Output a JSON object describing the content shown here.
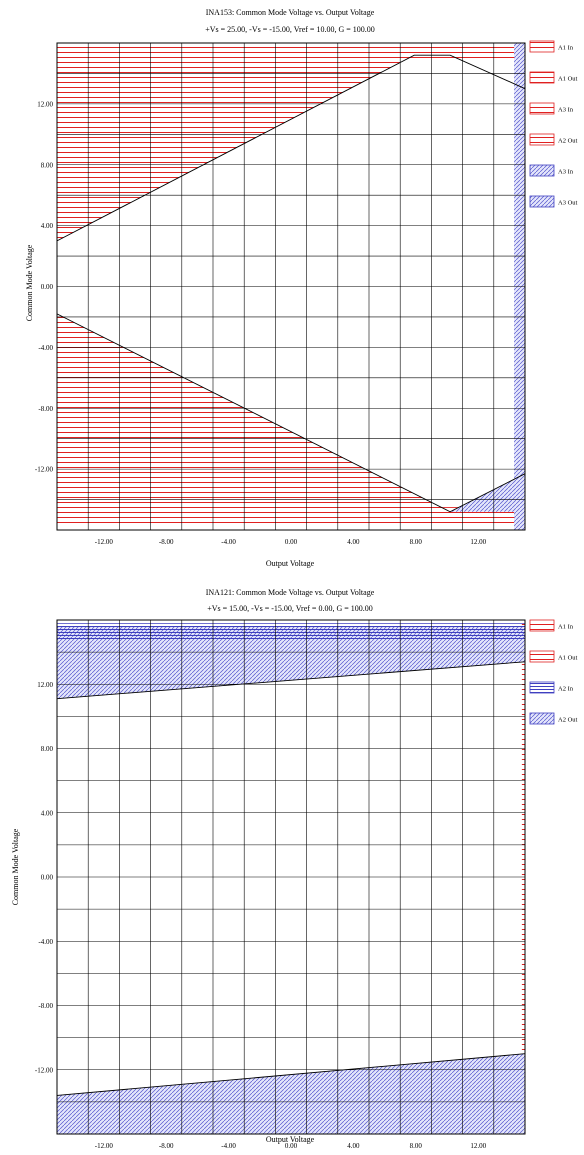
{
  "chart_data": [
    {
      "type": "area",
      "title": "INA153: Common Mode Voltage vs. Output Voltage",
      "subtitle": "+Vs = 25.00, -Vs = -15.00, Vref = 10.00, G = 100.00",
      "xlabel": "Output Voltage",
      "ylabel": "Common Mode Voltage",
      "xlim": [
        -15,
        15
      ],
      "ylim": [
        -16,
        16
      ],
      "x_ticks": [
        -12,
        -8,
        -4,
        0,
        4,
        8,
        12
      ],
      "x_tick_labels": [
        "-12.00",
        "-8.00",
        "-4.00",
        "0.00",
        "4.00",
        "8.00",
        "12.00"
      ],
      "y_ticks": [
        12,
        8,
        4,
        0,
        -4,
        -8,
        -12
      ],
      "y_tick_labels": [
        "12.00",
        "8.00",
        "4.00",
        "0.00",
        "-4.00",
        "-8.00",
        "-12.00"
      ],
      "grid": true,
      "legend_position": "right",
      "legend": [
        "A1 In",
        "A1 Out",
        "A3 In",
        "A2 Out",
        "A3 In",
        "A3 Out"
      ],
      "series": [
        {
          "name": "A1 In",
          "color": "#e02020",
          "fill": "hatch-h",
          "polygon": [
            [
              -15,
              3.0
            ],
            [
              7.9,
              15.2
            ],
            [
              -15,
              15.2
            ]
          ]
        },
        {
          "name": "A1 Out",
          "color": "#e02020",
          "fill": "hatch-h",
          "polygon": [
            [
              -15,
              14.8
            ],
            [
              15,
              14.8
            ],
            [
              15,
              15.8
            ],
            [
              -15,
              15.8
            ]
          ]
        },
        {
          "name": "A3 In",
          "color": "#e02020",
          "fill": "hatch-h",
          "polygon": [
            [
              -15,
              -1.8
            ],
            [
              10.2,
              -14.8
            ],
            [
              -15,
              -14.8
            ]
          ]
        },
        {
          "name": "A2 Out",
          "color": "#e02020",
          "fill": "hatch-h",
          "polygon": [
            [
              -15,
              -14.5
            ],
            [
              15,
              -14.5
            ],
            [
              15,
              -15.8
            ],
            [
              -15,
              -15.8
            ]
          ]
        },
        {
          "name": "A3 In",
          "color": "#4040c0",
          "fill": "hatch-d",
          "polygon": [
            [
              10.2,
              -14.8
            ],
            [
              15,
              -12.3
            ],
            [
              15,
              -14.8
            ]
          ]
        },
        {
          "name": "A3 Out",
          "color": "#4040c0",
          "fill": "hatch-d",
          "polygon": [
            [
              14.3,
              -16
            ],
            [
              15,
              -16
            ],
            [
              15,
              16
            ],
            [
              14.3,
              16
            ]
          ]
        }
      ],
      "boundary_lines": [
        [
          [
            -15,
            3.0
          ],
          [
            7.9,
            15.2
          ],
          [
            10.2,
            15.2
          ],
          [
            15,
            13.0
          ]
        ],
        [
          [
            -15,
            -1.8
          ],
          [
            10.2,
            -14.8
          ],
          [
            15,
            -12.3
          ]
        ]
      ]
    },
    {
      "type": "area",
      "title": "INA121: Common Mode Voltage vs. Output Voltage",
      "subtitle": "+Vs = 15.00, -Vs = -15.00, Vref = 0.00, G = 100.00",
      "xlabel": "Output Voltage",
      "ylabel": "Common Mode Voltage",
      "xlim": [
        -15,
        15
      ],
      "ylim": [
        -16,
        16
      ],
      "x_ticks": [
        -12,
        -8,
        -4,
        0,
        4,
        8,
        12
      ],
      "x_tick_labels": [
        "-12.00",
        "-8.00",
        "-4.00",
        "0.00",
        "4.00",
        "8.00",
        "12.00"
      ],
      "y_ticks": [
        12,
        8,
        4,
        0,
        -4,
        -8,
        -12
      ],
      "y_tick_labels": [
        "12.00",
        "8.00",
        "4.00",
        "0.00",
        "-4.00",
        "-8.00",
        "-12.00"
      ],
      "grid": true,
      "legend_position": "right",
      "legend": [
        "A1 In",
        "A1 Out",
        "A2 In",
        "A2 Out"
      ],
      "series": [
        {
          "name": "A1 Out",
          "color": "#e02020",
          "fill": "hatch-h",
          "polygon": [
            [
              14.8,
              -16
            ],
            [
              15,
              -16
            ],
            [
              15,
              16
            ],
            [
              14.8,
              16
            ]
          ]
        },
        {
          "name": "A2 Out",
          "color": "#4040c0",
          "fill": "hatch-d",
          "polygon": [
            [
              -15,
              11.1
            ],
            [
              15,
              13.4
            ],
            [
              15,
              15.6
            ],
            [
              -15,
              15.6
            ]
          ]
        },
        {
          "name": "A2 Out",
          "color": "#4040c0",
          "fill": "hatch-d",
          "polygon": [
            [
              -15,
              -13.6
            ],
            [
              15,
              -11.0
            ],
            [
              15,
              -16
            ],
            [
              -15,
              -16
            ]
          ]
        },
        {
          "name": "A1 In",
          "color": "#4040c0",
          "fill": "hatch-h",
          "polygon": [
            [
              -15,
              14.8
            ],
            [
              15,
              14.8
            ],
            [
              15,
              15.8
            ],
            [
              -15,
              15.8
            ]
          ]
        }
      ],
      "boundary_lines": [
        [
          [
            -15,
            11.1
          ],
          [
            15,
            13.4
          ]
        ],
        [
          [
            -15,
            -13.6
          ],
          [
            15,
            -11.0
          ]
        ]
      ]
    }
  ]
}
